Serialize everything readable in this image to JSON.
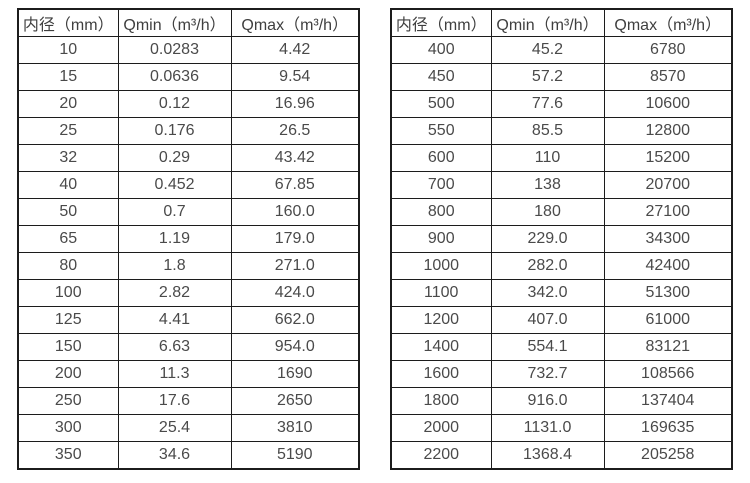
{
  "tables": [
    {
      "name": "flow-spec-table-small-diameters",
      "headers": [
        "内径（mm）",
        "Qmin（m³/h）",
        "Qmax（m³/h）"
      ],
      "rows": [
        [
          "10",
          "0.0283",
          "4.42"
        ],
        [
          "15",
          "0.0636",
          "9.54"
        ],
        [
          "20",
          "0.12",
          "16.96"
        ],
        [
          "25",
          "0.176",
          "26.5"
        ],
        [
          "32",
          "0.29",
          "43.42"
        ],
        [
          "40",
          "0.452",
          "67.85"
        ],
        [
          "50",
          "0.7",
          "160.0"
        ],
        [
          "65",
          "1.19",
          "179.0"
        ],
        [
          "80",
          "1.8",
          "271.0"
        ],
        [
          "100",
          "2.82",
          "424.0"
        ],
        [
          "125",
          "4.41",
          "662.0"
        ],
        [
          "150",
          "6.63",
          "954.0"
        ],
        [
          "200",
          "11.3",
          "1690"
        ],
        [
          "250",
          "17.6",
          "2650"
        ],
        [
          "300",
          "25.4",
          "3810"
        ],
        [
          "350",
          "34.6",
          "5190"
        ]
      ]
    },
    {
      "name": "flow-spec-table-large-diameters",
      "headers": [
        "内径（mm）",
        "Qmin（m³/h）",
        "Qmax（m³/h）"
      ],
      "rows": [
        [
          "400",
          "45.2",
          "6780"
        ],
        [
          "450",
          "57.2",
          "8570"
        ],
        [
          "500",
          "77.6",
          "10600"
        ],
        [
          "550",
          "85.5",
          "12800"
        ],
        [
          "600",
          "110",
          "15200"
        ],
        [
          "700",
          "138",
          "20700"
        ],
        [
          "800",
          "180",
          "27100"
        ],
        [
          "900",
          "229.0",
          "34300"
        ],
        [
          "1000",
          "282.0",
          "42400"
        ],
        [
          "1100",
          "342.0",
          "51300"
        ],
        [
          "1200",
          "407.0",
          "61000"
        ],
        [
          "1400",
          "554.1",
          "83121"
        ],
        [
          "1600",
          "732.7",
          "108566"
        ],
        [
          "1800",
          "916.0",
          "137404"
        ],
        [
          "2000",
          "1131.0",
          "169635"
        ],
        [
          "2200",
          "1368.4",
          "205258"
        ]
      ]
    }
  ],
  "colors": {
    "border": "#1c1c1c",
    "text": "#4a4a4a",
    "background": "#ffffff"
  }
}
